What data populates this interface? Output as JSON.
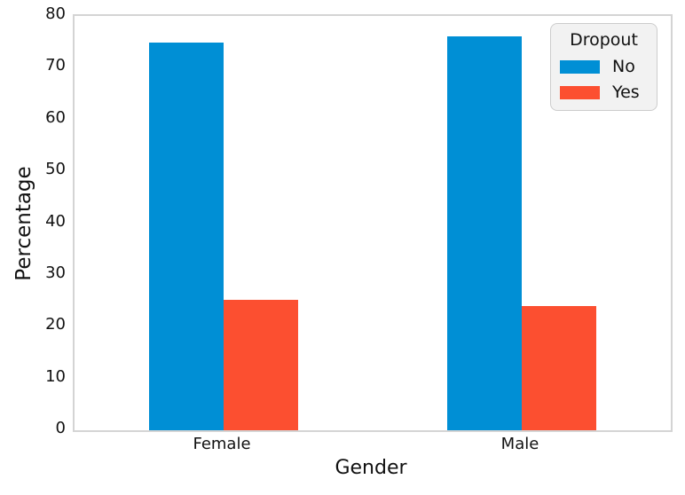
{
  "chart_data": {
    "type": "bar",
    "title": "",
    "xlabel": "Gender",
    "ylabel": "Percentage",
    "categories": [
      "Female",
      "Male"
    ],
    "series": [
      {
        "name": "No",
        "color": "#008fd5",
        "values": [
          74.9,
          76.1
        ]
      },
      {
        "name": "Yes",
        "color": "#fc4f30",
        "values": [
          25.1,
          23.9
        ]
      }
    ],
    "ylim": [
      0,
      80
    ],
    "yticks": [
      0,
      10,
      20,
      30,
      40,
      50,
      60,
      70,
      80
    ],
    "grid": false,
    "legend": {
      "title": "Dropout",
      "position": "upper right",
      "entries": [
        "No",
        "Yes"
      ]
    }
  },
  "colors": {
    "bar_no": "#008fd5",
    "bar_yes": "#fc4f30",
    "spine": "#d4d4d4",
    "text": "#111111",
    "legend_background": "#f2f2f2",
    "legend_border": "#cccccc",
    "figure_background": "#ffffff"
  }
}
